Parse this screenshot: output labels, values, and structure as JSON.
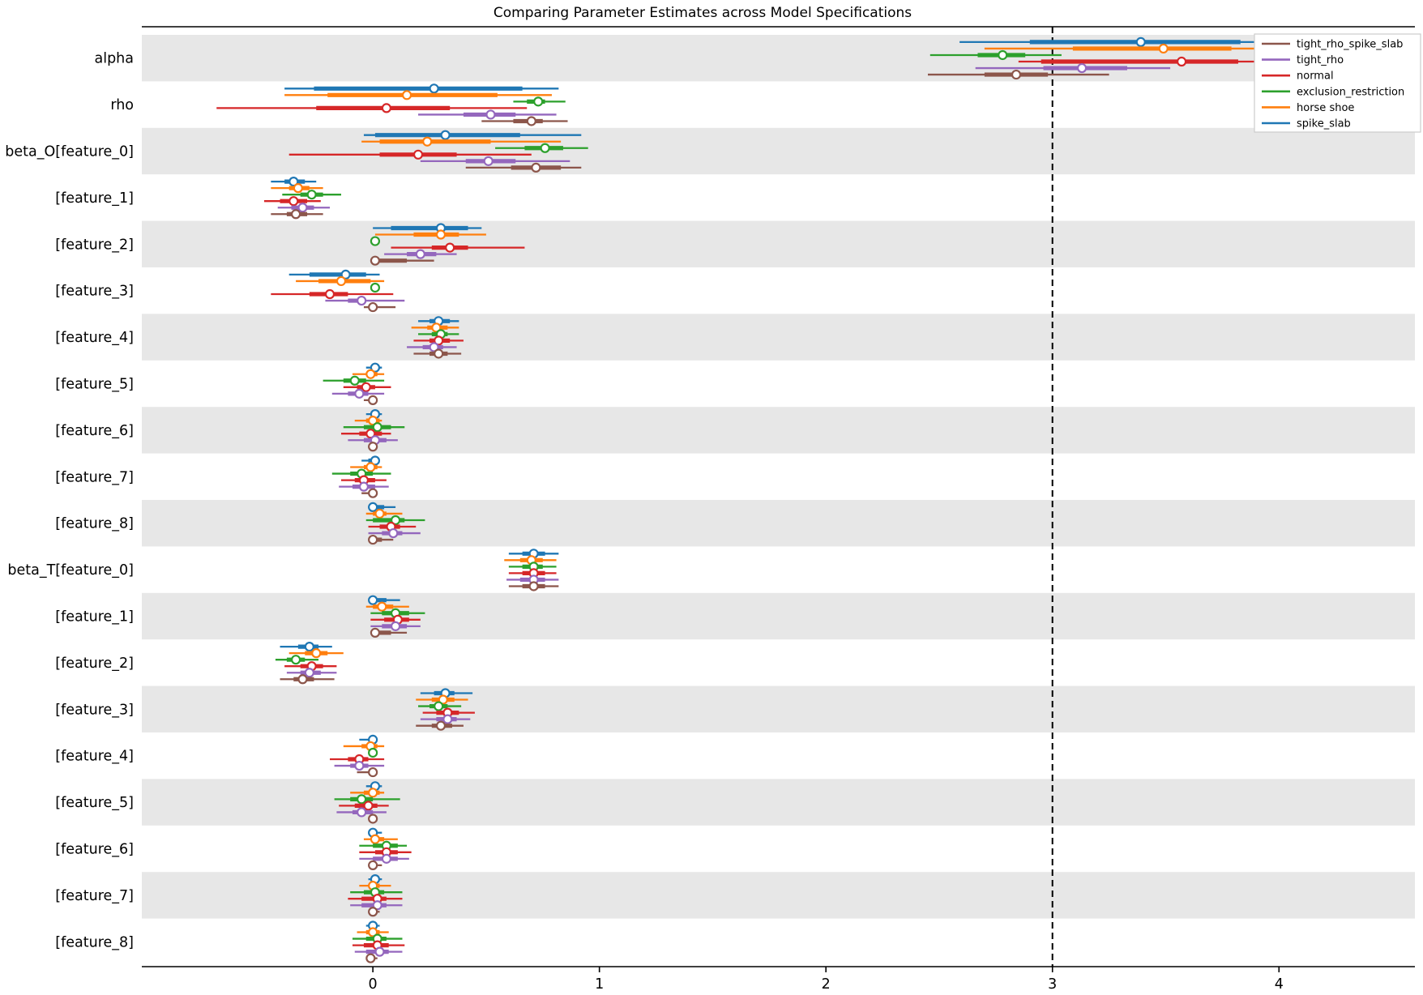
{
  "figure": {
    "background": "#ffffff",
    "band_color": "#e7e7e7",
    "axis_color": "#000000",
    "text_color": "#000000"
  },
  "chart_data": {
    "type": "forest",
    "title": "Comparing Parameter Estimates across Model Specifications",
    "xlabel": "",
    "ylabel": "",
    "x_ticks": [
      0,
      1,
      2,
      3,
      4
    ],
    "x_range": [
      -1.02,
      4.6
    ],
    "grid": false,
    "reference_line_x": 3,
    "interval_format": [
      "lower_ci",
      "lower_thick",
      "point_estimate",
      "upper_thick",
      "upper_ci"
    ],
    "series_order": [
      {
        "name": "spike_slab",
        "color": "#1f77b4"
      },
      {
        "name": "horse shoe",
        "color": "#ff7f0e"
      },
      {
        "name": "exclusion_restriction",
        "color": "#2ca02c"
      },
      {
        "name": "normal",
        "color": "#d62728"
      },
      {
        "name": "tight_rho",
        "color": "#9467bd"
      },
      {
        "name": "tight_rho_spike_slab",
        "color": "#8c564b"
      }
    ],
    "legend": {
      "position": "upper right",
      "entries": [
        {
          "label": "tight_rho_spike_slab",
          "color": "#8c564b"
        },
        {
          "label": "tight_rho",
          "color": "#9467bd"
        },
        {
          "label": "normal",
          "color": "#d62728"
        },
        {
          "label": "exclusion_restriction",
          "color": "#2ca02c"
        },
        {
          "label": "horse shoe",
          "color": "#ff7f0e"
        },
        {
          "label": "spike_slab",
          "color": "#1f77b4"
        }
      ]
    },
    "rows": [
      {
        "label": "alpha",
        "intervals": [
          [
            2.59,
            2.9,
            3.39,
            3.83,
            3.92
          ],
          [
            2.7,
            3.09,
            3.49,
            3.79,
            4.0
          ],
          [
            2.46,
            2.67,
            2.78,
            2.88,
            3.04
          ],
          [
            2.85,
            2.95,
            3.57,
            3.82,
            4.34
          ],
          [
            2.66,
            2.96,
            3.13,
            3.33,
            3.52
          ],
          [
            2.45,
            2.7,
            2.84,
            2.98,
            3.25
          ]
        ]
      },
      {
        "label": "rho",
        "intervals": [
          [
            -0.39,
            -0.26,
            0.27,
            0.66,
            0.82
          ],
          [
            -0.39,
            -0.2,
            0.15,
            0.55,
            0.79
          ],
          [
            0.62,
            0.68,
            0.73,
            0.76,
            0.85
          ],
          [
            -0.69,
            -0.25,
            0.06,
            0.34,
            0.68
          ],
          [
            0.2,
            0.4,
            0.52,
            0.63,
            0.81
          ],
          [
            0.48,
            0.62,
            0.7,
            0.75,
            0.86
          ]
        ]
      },
      {
        "label": "beta_O[feature_0]",
        "intervals": [
          [
            -0.04,
            0.01,
            0.32,
            0.65,
            0.92
          ],
          [
            -0.05,
            0.03,
            0.24,
            0.52,
            0.83
          ],
          [
            0.54,
            0.67,
            0.76,
            0.84,
            0.95
          ],
          [
            -0.37,
            0.03,
            0.2,
            0.37,
            0.7
          ],
          [
            0.21,
            0.41,
            0.51,
            0.63,
            0.87
          ],
          [
            0.41,
            0.61,
            0.72,
            0.83,
            0.92
          ]
        ]
      },
      {
        "label": "[feature_1]",
        "intervals": [
          [
            -0.45,
            -0.39,
            -0.35,
            -0.3,
            -0.25
          ],
          [
            -0.45,
            -0.37,
            -0.33,
            -0.28,
            -0.22
          ],
          [
            -0.4,
            -0.32,
            -0.27,
            -0.22,
            -0.14
          ],
          [
            -0.48,
            -0.41,
            -0.35,
            -0.29,
            -0.23
          ],
          [
            -0.42,
            -0.36,
            -0.31,
            -0.26,
            -0.19
          ],
          [
            -0.45,
            -0.38,
            -0.34,
            -0.29,
            -0.22
          ]
        ]
      },
      {
        "label": "[feature_2]",
        "intervals": [
          [
            0.0,
            0.08,
            0.3,
            0.42,
            0.48
          ],
          [
            0.01,
            0.18,
            0.3,
            0.38,
            0.5
          ],
          [
            0.0,
            0.01,
            0.01,
            0.02,
            0.02
          ],
          [
            0.08,
            0.26,
            0.34,
            0.42,
            0.67
          ],
          [
            0.05,
            0.15,
            0.21,
            0.28,
            0.37
          ],
          [
            0.01,
            0.01,
            0.01,
            0.15,
            0.27
          ]
        ]
      },
      {
        "label": "[feature_3]",
        "intervals": [
          [
            -0.37,
            -0.28,
            -0.12,
            -0.03,
            0.03
          ],
          [
            -0.34,
            -0.24,
            -0.14,
            -0.01,
            0.05
          ],
          [
            0.0,
            0.01,
            0.01,
            0.02,
            0.02
          ],
          [
            -0.45,
            -0.28,
            -0.19,
            -0.11,
            0.09
          ],
          [
            -0.21,
            -0.11,
            -0.05,
            -0.03,
            0.14
          ],
          [
            -0.04,
            -0.01,
            0.0,
            0.02,
            0.1
          ]
        ]
      },
      {
        "label": "[feature_4]",
        "intervals": [
          [
            0.2,
            0.25,
            0.29,
            0.34,
            0.38
          ],
          [
            0.17,
            0.24,
            0.28,
            0.33,
            0.38
          ],
          [
            0.2,
            0.26,
            0.3,
            0.33,
            0.38
          ],
          [
            0.18,
            0.25,
            0.29,
            0.34,
            0.4
          ],
          [
            0.15,
            0.22,
            0.27,
            0.31,
            0.37
          ],
          [
            0.18,
            0.25,
            0.29,
            0.33,
            0.39
          ]
        ]
      },
      {
        "label": "[feature_5]",
        "intervals": [
          [
            -0.03,
            -0.01,
            0.01,
            0.02,
            0.04
          ],
          [
            -0.09,
            -0.03,
            -0.01,
            0.02,
            0.05
          ],
          [
            -0.22,
            -0.13,
            -0.08,
            -0.03,
            0.05
          ],
          [
            -0.13,
            -0.07,
            -0.03,
            0.01,
            0.08
          ],
          [
            -0.18,
            -0.11,
            -0.06,
            -0.02,
            0.05
          ],
          [
            -0.04,
            -0.01,
            0.0,
            0.01,
            0.02
          ]
        ]
      },
      {
        "label": "[feature_6]",
        "intervals": [
          [
            -0.03,
            -0.01,
            0.01,
            0.02,
            0.04
          ],
          [
            -0.08,
            -0.03,
            0.0,
            0.03,
            0.04
          ],
          [
            -0.13,
            -0.04,
            0.02,
            0.08,
            0.14
          ],
          [
            -0.14,
            -0.06,
            -0.01,
            0.04,
            0.08
          ],
          [
            -0.11,
            -0.04,
            0.01,
            0.06,
            0.11
          ],
          [
            -0.02,
            -0.01,
            0.0,
            0.01,
            0.02
          ]
        ]
      },
      {
        "label": "[feature_7]",
        "intervals": [
          [
            -0.05,
            -0.02,
            0.01,
            0.01,
            0.02
          ],
          [
            -0.1,
            -0.04,
            -0.01,
            0.02,
            0.04
          ],
          [
            -0.18,
            -0.1,
            -0.05,
            0.0,
            0.08
          ],
          [
            -0.14,
            -0.08,
            -0.04,
            0.01,
            0.06
          ],
          [
            -0.15,
            -0.09,
            -0.04,
            0.01,
            0.07
          ],
          [
            -0.05,
            -0.02,
            0.0,
            0.01,
            0.02
          ]
        ]
      },
      {
        "label": "[feature_8]",
        "intervals": [
          [
            -0.01,
            0.0,
            0.0,
            0.05,
            0.1
          ],
          [
            -0.03,
            0.0,
            0.03,
            0.06,
            0.13
          ],
          [
            -0.03,
            0.0,
            0.1,
            0.14,
            0.23
          ],
          [
            -0.02,
            0.03,
            0.08,
            0.12,
            0.19
          ],
          [
            -0.02,
            0.04,
            0.09,
            0.13,
            0.21
          ],
          [
            -0.01,
            0.0,
            0.0,
            0.04,
            0.09
          ]
        ]
      },
      {
        "label": "beta_T[feature_0]",
        "intervals": [
          [
            0.6,
            0.66,
            0.71,
            0.76,
            0.82
          ],
          [
            0.58,
            0.65,
            0.7,
            0.75,
            0.81
          ],
          [
            0.6,
            0.66,
            0.71,
            0.75,
            0.81
          ],
          [
            0.6,
            0.66,
            0.71,
            0.76,
            0.81
          ],
          [
            0.59,
            0.65,
            0.71,
            0.76,
            0.82
          ],
          [
            0.6,
            0.66,
            0.71,
            0.76,
            0.82
          ]
        ]
      },
      {
        "label": "[feature_1]",
        "intervals": [
          [
            -0.01,
            0.0,
            0.0,
            0.06,
            0.12
          ],
          [
            -0.03,
            0.0,
            0.04,
            0.09,
            0.16
          ],
          [
            -0.01,
            0.04,
            0.1,
            0.16,
            0.23
          ],
          [
            -0.01,
            0.05,
            0.11,
            0.16,
            0.21
          ],
          [
            -0.01,
            0.04,
            0.1,
            0.15,
            0.21
          ],
          [
            -0.01,
            0.01,
            0.01,
            0.08,
            0.15
          ]
        ]
      },
      {
        "label": "[feature_2]",
        "intervals": [
          [
            -0.41,
            -0.33,
            -0.28,
            -0.24,
            -0.18
          ],
          [
            -0.37,
            -0.3,
            -0.25,
            -0.2,
            -0.13
          ],
          [
            -0.43,
            -0.38,
            -0.34,
            -0.3,
            -0.24
          ],
          [
            -0.39,
            -0.32,
            -0.27,
            -0.22,
            -0.16
          ],
          [
            -0.38,
            -0.32,
            -0.28,
            -0.23,
            -0.16
          ],
          [
            -0.41,
            -0.35,
            -0.31,
            -0.26,
            -0.17
          ]
        ]
      },
      {
        "label": "[feature_3]",
        "intervals": [
          [
            0.21,
            0.27,
            0.32,
            0.36,
            0.44
          ],
          [
            0.19,
            0.26,
            0.31,
            0.36,
            0.42
          ],
          [
            0.2,
            0.25,
            0.29,
            0.33,
            0.39
          ],
          [
            0.22,
            0.28,
            0.33,
            0.38,
            0.45
          ],
          [
            0.21,
            0.28,
            0.33,
            0.37,
            0.43
          ],
          [
            0.19,
            0.26,
            0.3,
            0.35,
            0.4
          ]
        ]
      },
      {
        "label": "[feature_4]",
        "intervals": [
          [
            -0.06,
            -0.02,
            0.0,
            0.01,
            0.02
          ],
          [
            -0.13,
            -0.05,
            -0.01,
            0.02,
            0.05
          ],
          [
            -0.01,
            0.0,
            0.0,
            0.01,
            0.01
          ],
          [
            -0.19,
            -0.11,
            -0.06,
            -0.02,
            0.05
          ],
          [
            -0.17,
            -0.1,
            -0.06,
            -0.02,
            0.05
          ],
          [
            -0.07,
            -0.02,
            0.0,
            0.01,
            0.02
          ]
        ]
      },
      {
        "label": "[feature_5]",
        "intervals": [
          [
            -0.03,
            -0.01,
            0.01,
            0.02,
            0.04
          ],
          [
            -0.1,
            -0.04,
            0.0,
            0.03,
            0.05
          ],
          [
            -0.17,
            -0.1,
            -0.05,
            0.0,
            0.12
          ],
          [
            -0.15,
            -0.08,
            -0.02,
            0.02,
            0.07
          ],
          [
            -0.16,
            -0.09,
            -0.05,
            0.0,
            0.06
          ],
          [
            -0.01,
            0.0,
            0.0,
            0.01,
            0.02
          ]
        ]
      },
      {
        "label": "[feature_6]",
        "intervals": [
          [
            -0.01,
            0.0,
            0.0,
            0.02,
            0.04
          ],
          [
            -0.04,
            0.0,
            0.01,
            0.05,
            0.11
          ],
          [
            -0.06,
            0.0,
            0.06,
            0.11,
            0.15
          ],
          [
            -0.06,
            0.01,
            0.06,
            0.11,
            0.17
          ],
          [
            -0.06,
            0.0,
            0.06,
            0.11,
            0.16
          ],
          [
            0.0,
            0.0,
            0.0,
            0.02,
            0.04
          ]
        ]
      },
      {
        "label": "[feature_7]",
        "intervals": [
          [
            -0.02,
            0.0,
            0.01,
            0.02,
            0.04
          ],
          [
            -0.06,
            -0.02,
            0.0,
            0.03,
            0.08
          ],
          [
            -0.1,
            -0.04,
            0.01,
            0.05,
            0.13
          ],
          [
            -0.11,
            -0.05,
            0.02,
            0.06,
            0.13
          ],
          [
            -0.1,
            -0.05,
            0.02,
            0.06,
            0.13
          ],
          [
            -0.01,
            0.0,
            0.0,
            0.02,
            0.03
          ]
        ]
      },
      {
        "label": "[feature_8]",
        "intervals": [
          [
            -0.03,
            -0.01,
            0.0,
            0.01,
            0.03
          ],
          [
            -0.07,
            -0.03,
            0.0,
            0.03,
            0.07
          ],
          [
            -0.09,
            -0.03,
            0.02,
            0.06,
            0.13
          ],
          [
            -0.09,
            -0.04,
            0.02,
            0.07,
            0.14
          ],
          [
            -0.08,
            -0.03,
            0.03,
            0.07,
            0.13
          ],
          [
            -0.03,
            -0.02,
            -0.01,
            0.01,
            0.02
          ]
        ]
      }
    ]
  }
}
